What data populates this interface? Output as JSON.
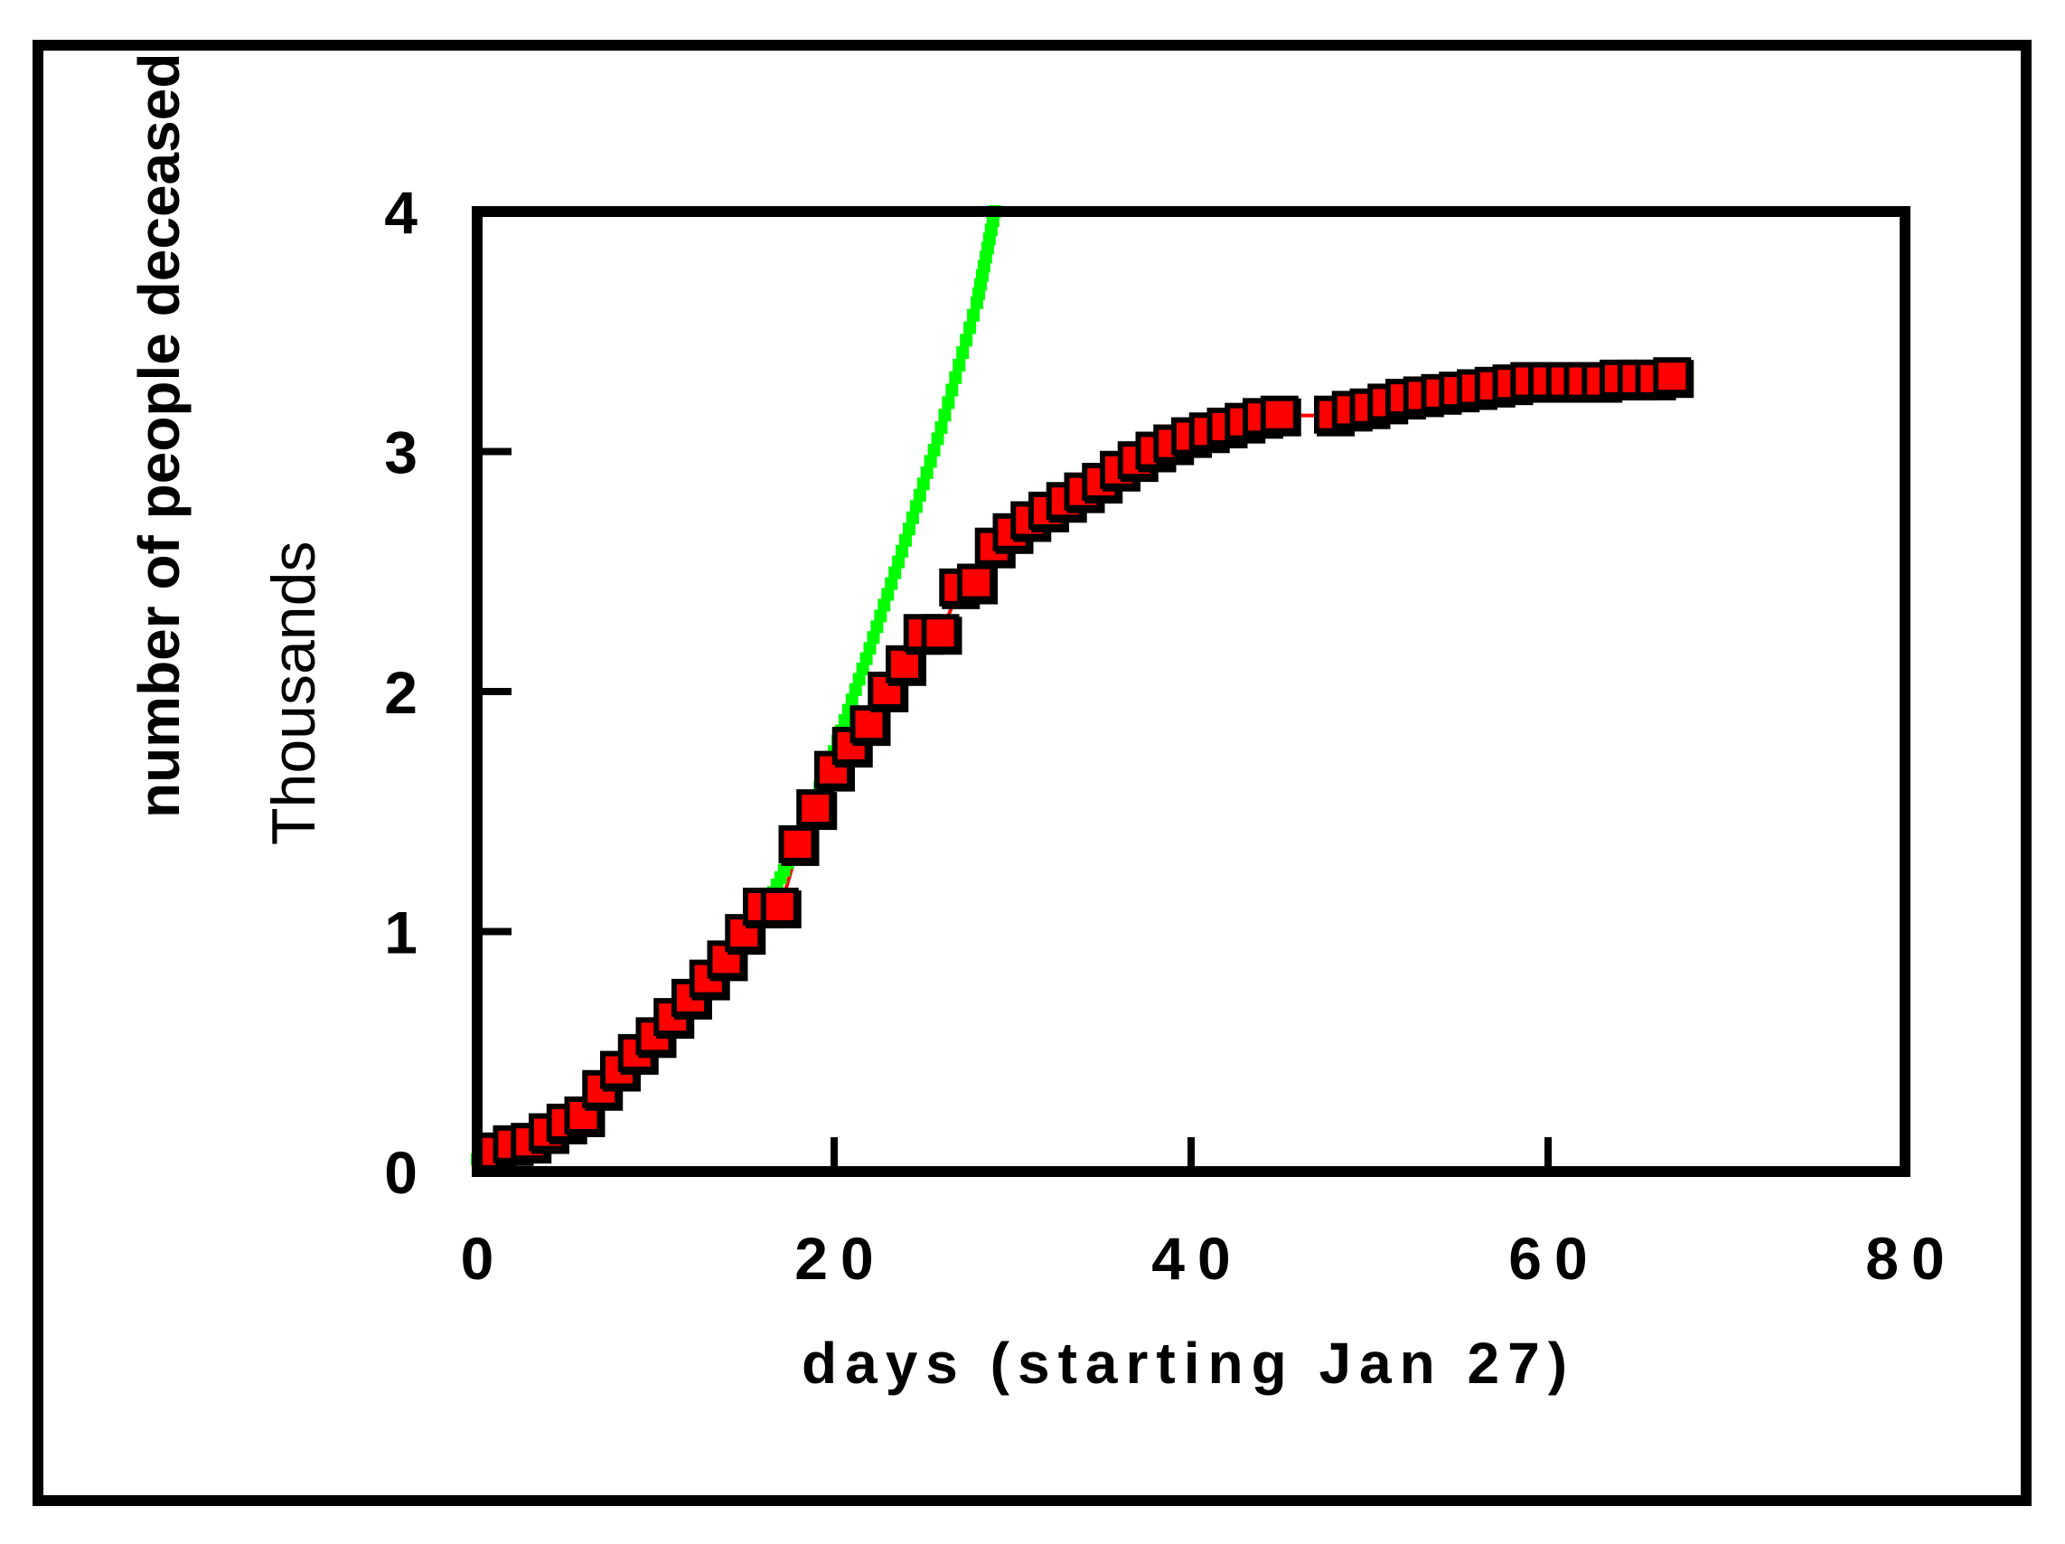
{
  "chart_data": {
    "type": "scatter",
    "xlabel": "days (starting Jan 27)",
    "ylabel": "number of people deceased",
    "y_unit_label": "Thousands",
    "xlim": [
      0,
      80
    ],
    "ylim": [
      0,
      4
    ],
    "x_ticks": [
      "0",
      "20",
      "40",
      "60",
      "80"
    ],
    "y_ticks": [
      "0",
      "1",
      "2",
      "3",
      "4"
    ],
    "grid": false,
    "legend": "none",
    "colors": {
      "markers": "#ff0000",
      "marker_outline": "#000000",
      "fit_line": "#00ff00",
      "smooth_line": "#ff0000"
    },
    "series": [
      {
        "kind": "markers",
        "x": [
          1,
          2,
          3,
          4,
          5,
          6,
          7,
          8,
          9,
          10,
          11,
          12,
          13,
          14,
          15,
          16,
          17,
          18,
          19,
          20,
          21,
          22,
          23,
          24,
          25,
          26,
          27,
          28,
          29,
          30,
          31,
          32,
          33,
          34,
          35,
          36,
          37,
          38,
          39,
          40,
          41,
          42,
          43,
          44,
          45,
          48,
          49,
          50,
          51,
          52,
          53,
          54,
          55,
          56,
          57,
          58,
          59,
          60,
          61,
          62,
          63,
          64,
          65,
          66,
          67
        ],
        "y": [
          0.08,
          0.11,
          0.12,
          0.16,
          0.2,
          0.23,
          0.34,
          0.42,
          0.49,
          0.56,
          0.64,
          0.72,
          0.8,
          0.88,
          0.99,
          1.1,
          1.1,
          1.36,
          1.51,
          1.67,
          1.77,
          1.86,
          2.0,
          2.11,
          2.24,
          2.24,
          2.43,
          2.45,
          2.6,
          2.66,
          2.71,
          2.75,
          2.79,
          2.83,
          2.87,
          2.92,
          2.96,
          3.0,
          3.03,
          3.06,
          3.08,
          3.1,
          3.12,
          3.14,
          3.15,
          3.15,
          3.17,
          3.18,
          3.2,
          3.22,
          3.23,
          3.24,
          3.25,
          3.26,
          3.27,
          3.28,
          3.29,
          3.29,
          3.29,
          3.29,
          3.29,
          3.3,
          3.3,
          3.3,
          3.31
        ]
      },
      {
        "kind": "fit-line",
        "x": [
          0,
          2,
          4,
          6,
          8,
          10,
          12,
          14,
          16,
          18,
          20,
          22,
          24,
          26,
          28,
          29
        ],
        "y": [
          0.05,
          0.11,
          0.17,
          0.25,
          0.38,
          0.52,
          0.68,
          0.85,
          1.07,
          1.38,
          1.75,
          2.18,
          2.63,
          3.1,
          3.62,
          4.0
        ]
      }
    ]
  }
}
